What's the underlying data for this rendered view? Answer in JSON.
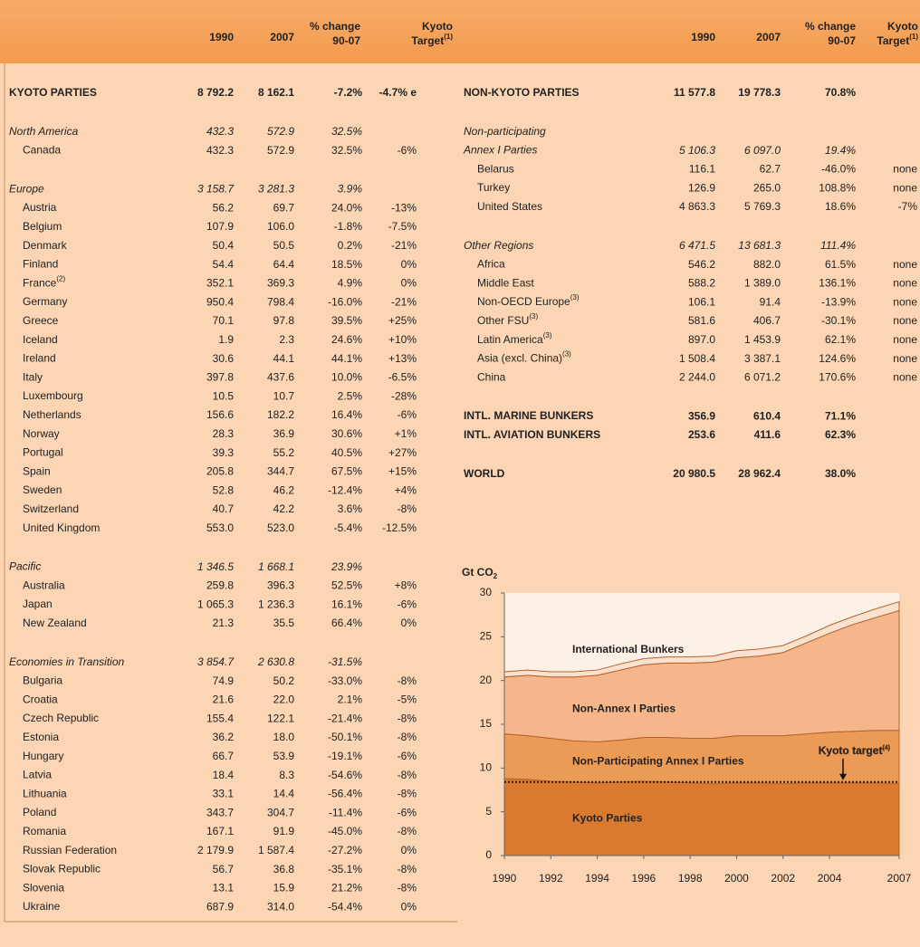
{
  "header": {
    "left": [
      {
        "lines": [
          "1990"
        ]
      },
      {
        "lines": [
          "2007"
        ]
      },
      {
        "lines": [
          "% change",
          "90-07"
        ]
      },
      {
        "lines": [
          "Kyoto",
          "Target"
        ],
        "note": "(1)"
      }
    ],
    "right": [
      {
        "lines": [
          "1990"
        ]
      },
      {
        "lines": [
          "2007"
        ]
      },
      {
        "lines": [
          "% change",
          "90-07"
        ]
      },
      {
        "lines": [
          "Kyoto",
          "Target"
        ],
        "note": "(1)"
      }
    ]
  },
  "tables": {
    "left": [
      [
        {
          "kind": "total",
          "label": "KYOTO PARTIES",
          "v1990": "8 792.2",
          "v2007": "8 162.1",
          "change": "-7.2%",
          "target": "-4.7% e"
        }
      ],
      [
        {
          "kind": "region",
          "label": "North America",
          "v1990": "432.3",
          "v2007": "572.9",
          "change": "32.5%"
        },
        {
          "kind": "country",
          "label": "Canada",
          "v1990": "432.3",
          "v2007": "572.9",
          "change": "32.5%",
          "target": "-6%"
        }
      ],
      [
        {
          "kind": "region",
          "label": "Europe",
          "v1990": "3 158.7",
          "v2007": "3 281.3",
          "change": "3.9%"
        },
        {
          "kind": "country",
          "label": "Austria",
          "v1990": "56.2",
          "v2007": "69.7",
          "change": "24.0%",
          "target": "-13%"
        },
        {
          "kind": "country",
          "label": "Belgium",
          "v1990": "107.9",
          "v2007": "106.0",
          "change": "-1.8%",
          "target": "-7.5%"
        },
        {
          "kind": "country",
          "label": "Denmark",
          "v1990": "50.4",
          "v2007": "50.5",
          "change": "0.2%",
          "target": "-21%"
        },
        {
          "kind": "country",
          "label": "Finland",
          "v1990": "54.4",
          "v2007": "64.4",
          "change": "18.5%",
          "target": "0%"
        },
        {
          "kind": "country",
          "label": "France",
          "note": "(2)",
          "v1990": "352.1",
          "v2007": "369.3",
          "change": "4.9%",
          "target": "0%"
        },
        {
          "kind": "country",
          "label": "Germany",
          "v1990": "950.4",
          "v2007": "798.4",
          "change": "-16.0%",
          "target": "-21%"
        },
        {
          "kind": "country",
          "label": "Greece",
          "v1990": "70.1",
          "v2007": "97.8",
          "change": "39.5%",
          "target": "+25%"
        },
        {
          "kind": "country",
          "label": "Iceland",
          "v1990": "1.9",
          "v2007": "2.3",
          "change": "24.6%",
          "target": "+10%"
        },
        {
          "kind": "country",
          "label": "Ireland",
          "v1990": "30.6",
          "v2007": "44.1",
          "change": "44.1%",
          "target": "+13%"
        },
        {
          "kind": "country",
          "label": "Italy",
          "v1990": "397.8",
          "v2007": "437.6",
          "change": "10.0%",
          "target": "-6.5%"
        },
        {
          "kind": "country",
          "label": "Luxembourg",
          "v1990": "10.5",
          "v2007": "10.7",
          "change": "2.5%",
          "target": "-28%"
        },
        {
          "kind": "country",
          "label": "Netherlands",
          "v1990": "156.6",
          "v2007": "182.2",
          "change": "16.4%",
          "target": "-6%"
        },
        {
          "kind": "country",
          "label": "Norway",
          "v1990": "28.3",
          "v2007": "36.9",
          "change": "30.6%",
          "target": "+1%"
        },
        {
          "kind": "country",
          "label": "Portugal",
          "v1990": "39.3",
          "v2007": "55.2",
          "change": "40.5%",
          "target": "+27%"
        },
        {
          "kind": "country",
          "label": "Spain",
          "v1990": "205.8",
          "v2007": "344.7",
          "change": "67.5%",
          "target": "+15%"
        },
        {
          "kind": "country",
          "label": "Sweden",
          "v1990": "52.8",
          "v2007": "46.2",
          "change": "-12.4%",
          "target": "+4%"
        },
        {
          "kind": "country",
          "label": "Switzerland",
          "v1990": "40.7",
          "v2007": "42.2",
          "change": "3.6%",
          "target": "-8%"
        },
        {
          "kind": "country",
          "label": "United Kingdom",
          "v1990": "553.0",
          "v2007": "523.0",
          "change": "-5.4%",
          "target": "-12.5%"
        }
      ],
      [
        {
          "kind": "region",
          "label": "Pacific",
          "v1990": "1 346.5",
          "v2007": "1 668.1",
          "change": "23.9%"
        },
        {
          "kind": "country",
          "label": "Australia",
          "v1990": "259.8",
          "v2007": "396.3",
          "change": "52.5%",
          "target": "+8%"
        },
        {
          "kind": "country",
          "label": "Japan",
          "v1990": "1 065.3",
          "v2007": "1 236.3",
          "change": "16.1%",
          "target": "-6%"
        },
        {
          "kind": "country",
          "label": "New Zealand",
          "v1990": "21.3",
          "v2007": "35.5",
          "change": "66.4%",
          "target": "0%"
        }
      ],
      [
        {
          "kind": "region",
          "label": "Economies in Transition",
          "v1990": "3 854.7",
          "v2007": "2 630.8",
          "change": "-31.5%"
        },
        {
          "kind": "country",
          "label": "Bulgaria",
          "v1990": "74.9",
          "v2007": "50.2",
          "change": "-33.0%",
          "target": "-8%"
        },
        {
          "kind": "country",
          "label": "Croatia",
          "v1990": "21.6",
          "v2007": "22.0",
          "change": "2.1%",
          "target": "-5%"
        },
        {
          "kind": "country",
          "label": "Czech Republic",
          "v1990": "155.4",
          "v2007": "122.1",
          "change": "-21.4%",
          "target": "-8%"
        },
        {
          "kind": "country",
          "label": "Estonia",
          "v1990": "36.2",
          "v2007": "18.0",
          "change": "-50.1%",
          "target": "-8%"
        },
        {
          "kind": "country",
          "label": "Hungary",
          "v1990": "66.7",
          "v2007": "53.9",
          "change": "-19.1%",
          "target": "-6%"
        },
        {
          "kind": "country",
          "label": "Latvia",
          "v1990": "18.4",
          "v2007": "8.3",
          "change": "-54.6%",
          "target": "-8%"
        },
        {
          "kind": "country",
          "label": "Lithuania",
          "v1990": "33.1",
          "v2007": "14.4",
          "change": "-56.4%",
          "target": "-8%"
        },
        {
          "kind": "country",
          "label": "Poland",
          "v1990": "343.7",
          "v2007": "304.7",
          "change": "-11.4%",
          "target": "-6%"
        },
        {
          "kind": "country",
          "label": "Romania",
          "v1990": "167.1",
          "v2007": "91.9",
          "change": "-45.0%",
          "target": "-8%"
        },
        {
          "kind": "country",
          "label": "Russian Federation",
          "v1990": "2 179.9",
          "v2007": "1 587.4",
          "change": "-27.2%",
          "target": "0%"
        },
        {
          "kind": "country",
          "label": "Slovak Republic",
          "v1990": "56.7",
          "v2007": "36.8",
          "change": "-35.1%",
          "target": "-8%"
        },
        {
          "kind": "country",
          "label": "Slovenia",
          "v1990": "13.1",
          "v2007": "15.9",
          "change": "21.2%",
          "target": "-8%"
        },
        {
          "kind": "country",
          "label": "Ukraine",
          "v1990": "687.9",
          "v2007": "314.0",
          "change": "-54.4%",
          "target": "0%"
        }
      ]
    ],
    "right": [
      [
        {
          "kind": "total",
          "label": "NON-KYOTO PARTIES",
          "v1990": "11 577.8",
          "v2007": "19 778.3",
          "change": "70.8%"
        }
      ],
      [
        {
          "kind": "region",
          "label": "Non-participating"
        },
        {
          "kind": "region",
          "label": "Annex I Parties",
          "v1990": "5 106.3",
          "v2007": "6 097.0",
          "change": "19.4%"
        },
        {
          "kind": "country",
          "label": "Belarus",
          "v1990": "116.1",
          "v2007": "62.7",
          "change": "-46.0%",
          "target": "none"
        },
        {
          "kind": "country",
          "label": "Turkey",
          "v1990": "126.9",
          "v2007": "265.0",
          "change": "108.8%",
          "target": "none"
        },
        {
          "kind": "country",
          "label": "United States",
          "v1990": "4 863.3",
          "v2007": "5 769.3",
          "change": "18.6%",
          "target": "-7%"
        }
      ],
      [
        {
          "kind": "region",
          "label": "Other Regions",
          "v1990": "6 471.5",
          "v2007": "13 681.3",
          "change": "111.4%"
        },
        {
          "kind": "country",
          "label": "Africa",
          "v1990": "546.2",
          "v2007": "882.0",
          "change": "61.5%",
          "target": "none"
        },
        {
          "kind": "country",
          "label": "Middle East",
          "v1990": "588.2",
          "v2007": "1 389.0",
          "change": "136.1%",
          "target": "none"
        },
        {
          "kind": "country",
          "label": "Non-OECD Europe",
          "note": "(3)",
          "v1990": "106.1",
          "v2007": "91.4",
          "change": "-13.9%",
          "target": "none"
        },
        {
          "kind": "country",
          "label": "Other FSU",
          "note": "(3)",
          "v1990": "581.6",
          "v2007": "406.7",
          "change": "-30.1%",
          "target": "none"
        },
        {
          "kind": "country",
          "label": "Latin America",
          "note": "(3)",
          "v1990": "897.0",
          "v2007": "1 453.9",
          "change": "62.1%",
          "target": "none"
        },
        {
          "kind": "country",
          "label": "Asia (excl. China)",
          "note": "(3)",
          "v1990": "1 508.4",
          "v2007": "3 387.1",
          "change": "124.6%",
          "target": "none"
        },
        {
          "kind": "country",
          "label": "China",
          "v1990": "2 244.0",
          "v2007": "6 071.2",
          "change": "170.6%",
          "target": "none"
        }
      ],
      [
        {
          "kind": "total",
          "label": "INTL. MARINE BUNKERS",
          "v1990": "356.9",
          "v2007": "610.4",
          "change": "71.1%"
        },
        {
          "kind": "total",
          "label": "INTL. AVIATION BUNKERS",
          "v1990": "253.6",
          "v2007": "411.6",
          "change": "62.3%"
        }
      ],
      [
        {
          "kind": "total",
          "label": "WORLD",
          "v1990": "20 980.5",
          "v2007": "28 962.4",
          "change": "38.0%"
        }
      ]
    ]
  },
  "chart": {
    "type": "area",
    "stacked": true,
    "y_label": "Gt CO",
    "y_label_sub": "2",
    "x": [
      1990,
      1991,
      1992,
      1993,
      1994,
      1995,
      1996,
      1997,
      1998,
      1999,
      2000,
      2001,
      2002,
      2003,
      2004,
      2005,
      2006,
      2007
    ],
    "xlim": [
      1990,
      2007
    ],
    "xticks": [
      1990,
      1992,
      1994,
      1996,
      1998,
      2000,
      2002,
      2004,
      2007
    ],
    "ylim": [
      0,
      30
    ],
    "yticks": [
      0,
      5,
      10,
      15,
      20,
      25,
      30
    ],
    "series": [
      {
        "name": "Kyoto Parties",
        "color": "#d97a30",
        "values": [
          8.8,
          8.7,
          8.5,
          8.4,
          8.3,
          8.4,
          8.5,
          8.4,
          8.3,
          8.2,
          8.3,
          8.3,
          8.2,
          8.3,
          8.3,
          8.3,
          8.3,
          8.2
        ]
      },
      {
        "name": "Non-Participating Annex I Parties",
        "color": "#ec9b57",
        "values": [
          5.1,
          5.0,
          4.9,
          4.7,
          4.7,
          4.8,
          5.0,
          5.1,
          5.1,
          5.2,
          5.4,
          5.4,
          5.5,
          5.6,
          5.8,
          5.9,
          6.0,
          6.1
        ]
      },
      {
        "name": "Non-Annex I Parties",
        "color": "#f4b68a",
        "values": [
          6.5,
          6.9,
          7.0,
          7.3,
          7.6,
          8.0,
          8.3,
          8.5,
          8.6,
          8.7,
          8.9,
          9.1,
          9.5,
          10.4,
          11.3,
          12.2,
          12.9,
          13.7
        ]
      },
      {
        "name": "International Bunkers",
        "color": "#fbe1cf",
        "values": [
          0.6,
          0.6,
          0.6,
          0.6,
          0.6,
          0.7,
          0.7,
          0.7,
          0.7,
          0.7,
          0.8,
          0.8,
          0.8,
          0.8,
          0.9,
          0.9,
          1.0,
          1.0
        ]
      }
    ],
    "target": {
      "label": "Kyoto target",
      "note": "(4)",
      "value": 8.4
    }
  }
}
